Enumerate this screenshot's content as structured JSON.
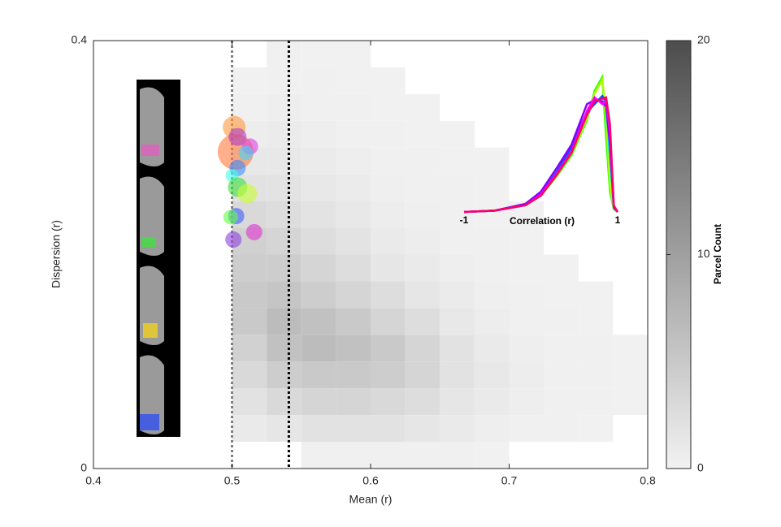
{
  "chart_data": [
    {
      "type": "histogram2d",
      "xlabel": "Mean (r)",
      "ylabel": "Dispersion (r)",
      "xlim": [
        0.4,
        0.8
      ],
      "ylim": [
        0,
        0.4
      ],
      "xticks": [
        0.4,
        0.5,
        0.6,
        0.7,
        0.8
      ],
      "yticks": [
        0,
        0.4
      ],
      "xbins": [
        0.4,
        0.425,
        0.45,
        0.475,
        0.5,
        0.525,
        0.55,
        0.575,
        0.6,
        0.625,
        0.65,
        0.675,
        0.7,
        0.725,
        0.75,
        0.775,
        0.8
      ],
      "ybins": [
        0,
        0.025,
        0.05,
        0.075,
        0.1,
        0.125,
        0.15,
        0.175,
        0.2,
        0.225,
        0.25,
        0.275,
        0.3,
        0.325,
        0.35,
        0.375,
        0.4
      ],
      "counts": [
        [
          0,
          0,
          0,
          0,
          0,
          0,
          0.3,
          0.3,
          0.3,
          0.3,
          0.2,
          0.1,
          0,
          0,
          0,
          0
        ],
        [
          0,
          0,
          0,
          0,
          1,
          1.5,
          2,
          2,
          2,
          1.5,
          1,
          0.5,
          0.3,
          0.2,
          0.1,
          0
        ],
        [
          0,
          0,
          0,
          0,
          2,
          3,
          3.5,
          3.5,
          3,
          2.5,
          1.5,
          1,
          0.5,
          0.3,
          0.2,
          0.1
        ],
        [
          0,
          0,
          0,
          0,
          3,
          4.5,
          5,
          5,
          4.5,
          3.5,
          2,
          1.2,
          0.6,
          0.3,
          0.2,
          0.1
        ],
        [
          0,
          0,
          0,
          0,
          4,
          6,
          6.5,
          6,
          5,
          3.5,
          2,
          1,
          0.5,
          0.3,
          0.2,
          0.1
        ],
        [
          0,
          0,
          0,
          0,
          5,
          6.5,
          6,
          5,
          3.5,
          2.5,
          1.2,
          0.6,
          0.3,
          0.2,
          0.1,
          0
        ],
        [
          0,
          0,
          0,
          0,
          5,
          5.5,
          4.5,
          3.5,
          2.5,
          1.5,
          0.8,
          0.4,
          0.2,
          0.1,
          0.1,
          0
        ],
        [
          0,
          0,
          0,
          0,
          4.5,
          4.5,
          3.5,
          2.5,
          1.5,
          1,
          0.5,
          0.3,
          0.1,
          0.1,
          0,
          0
        ],
        [
          0,
          0,
          0,
          0,
          4,
          3.5,
          2.5,
          1.8,
          1,
          0.6,
          0.3,
          0.2,
          0.1,
          0,
          0,
          0
        ],
        [
          0,
          0,
          0,
          0,
          3,
          2.5,
          1.8,
          1.2,
          0.6,
          0.4,
          0.2,
          0.1,
          0.1,
          0,
          0,
          0
        ],
        [
          0,
          0,
          0,
          0,
          2,
          1.8,
          1.2,
          0.8,
          0.4,
          0.3,
          0.2,
          0.1,
          0,
          0,
          0,
          0
        ],
        [
          0,
          0,
          0,
          0,
          1.2,
          1.2,
          0.8,
          0.5,
          0.3,
          0.2,
          0.1,
          0.1,
          0,
          0,
          0,
          0
        ],
        [
          0,
          0,
          0,
          0,
          0.6,
          0.8,
          0.5,
          0.3,
          0.2,
          0.1,
          0.1,
          0,
          0,
          0,
          0,
          0
        ],
        [
          0,
          0,
          0,
          0,
          0.3,
          0.5,
          0.3,
          0.2,
          0.1,
          0.1,
          0,
          0,
          0,
          0,
          0,
          0
        ],
        [
          0,
          0,
          0,
          0,
          0.1,
          0.3,
          0.2,
          0.1,
          0.1,
          0,
          0,
          0,
          0,
          0,
          0,
          0
        ],
        [
          0,
          0,
          0,
          0,
          0,
          0.2,
          0.1,
          0.1,
          0,
          0,
          0,
          0,
          0,
          0,
          0,
          0
        ]
      ],
      "cmap": [
        "#f2f2f2",
        "#4d4d4d"
      ],
      "colorbar": {
        "label": "Parcel Count",
        "lim": [
          0,
          20
        ],
        "ticks": [
          0,
          10,
          20
        ]
      },
      "vlines": [
        {
          "x": 0.5,
          "color": "#808080"
        },
        {
          "x": 0.541,
          "color": "#000000"
        }
      ],
      "bubbles": {
        "x": [
          0.5015,
          0.5026,
          0.504,
          0.513,
          0.51,
          0.504,
          0.5,
          0.504,
          0.511,
          0.503,
          0.499,
          0.516,
          0.501
        ],
        "y": [
          0.319,
          0.296,
          0.31,
          0.301,
          0.295,
          0.281,
          0.274,
          0.263,
          0.257,
          0.236,
          0.235,
          0.221,
          0.214
        ],
        "sizes": [
          14,
          22,
          11,
          10,
          9,
          10,
          8,
          12,
          12,
          10,
          9,
          10,
          10
        ],
        "colors": [
          "#ff9a3c",
          "#ff7a3c",
          "#b03cc8",
          "#e040e0",
          "#40d8ff",
          "#3c8cff",
          "#40ffe8",
          "#40e040",
          "#c8ff30",
          "#3c5cff",
          "#60ff40",
          "#e030d0",
          "#9040e0"
        ]
      }
    },
    {
      "type": "line",
      "xlabel": "Correlation (r)",
      "xlim": [
        -1,
        1
      ],
      "ylim": [
        0,
        1
      ],
      "xticks": [
        -1,
        1
      ],
      "x": [
        -1,
        -0.6,
        -0.2,
        0,
        0.2,
        0.4,
        0.5,
        0.6,
        0.7,
        0.8,
        0.85,
        0.9,
        0.95,
        1
      ],
      "series": [
        {
          "color": "#33ff00",
          "values": [
            0,
            0.01,
            0.05,
            0.12,
            0.26,
            0.42,
            0.55,
            0.68,
            0.9,
            1.0,
            0.55,
            0.15,
            0.02,
            0
          ]
        },
        {
          "color": "#aaff00",
          "values": [
            0,
            0.01,
            0.05,
            0.13,
            0.27,
            0.44,
            0.56,
            0.7,
            0.88,
            0.98,
            0.7,
            0.2,
            0.02,
            0
          ]
        },
        {
          "color": "#00e5ff",
          "values": [
            0,
            0.01,
            0.06,
            0.14,
            0.3,
            0.46,
            0.6,
            0.72,
            0.82,
            0.85,
            0.8,
            0.4,
            0.03,
            0
          ]
        },
        {
          "color": "#0055ff",
          "values": [
            0,
            0.01,
            0.05,
            0.13,
            0.29,
            0.48,
            0.62,
            0.74,
            0.8,
            0.86,
            0.82,
            0.5,
            0.03,
            0
          ]
        },
        {
          "color": "#8800ff",
          "values": [
            0,
            0.01,
            0.06,
            0.15,
            0.32,
            0.5,
            0.65,
            0.8,
            0.83,
            0.82,
            0.78,
            0.5,
            0.04,
            0
          ]
        },
        {
          "color": "#ff00ff",
          "values": [
            0,
            0.01,
            0.05,
            0.13,
            0.28,
            0.45,
            0.6,
            0.75,
            0.85,
            0.8,
            0.83,
            0.6,
            0.05,
            0
          ]
        },
        {
          "color": "#ff0066",
          "values": [
            0,
            0.01,
            0.05,
            0.12,
            0.27,
            0.44,
            0.58,
            0.72,
            0.82,
            0.84,
            0.85,
            0.65,
            0.04,
            0
          ]
        }
      ]
    }
  ]
}
